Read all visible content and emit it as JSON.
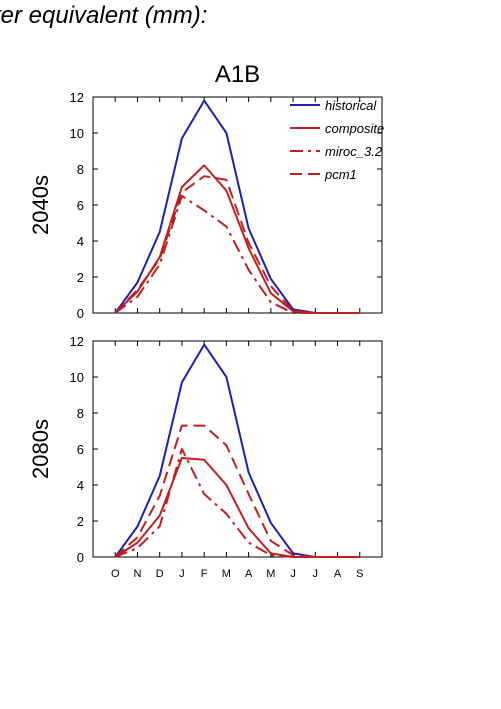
{
  "header": {
    "title": "ter equivalent (mm):"
  },
  "chart_data": {
    "type": "line",
    "scenario": "A1B",
    "months": [
      "O",
      "N",
      "D",
      "J",
      "F",
      "M",
      "A",
      "M",
      "J",
      "J",
      "A",
      "S"
    ],
    "ylim": [
      0,
      12
    ],
    "yticks": [
      0,
      2,
      4,
      6,
      8,
      10,
      12
    ],
    "grid": false,
    "legend_position": "top-right",
    "colors": {
      "historical": "#1f1fb4",
      "scenario": "#c01f1f"
    },
    "panels": [
      {
        "label": "2040s",
        "series": [
          {
            "name": "historical",
            "style": "solid",
            "color": "#1f1fb4",
            "values": [
              0,
              1.7,
              4.5,
              9.7,
              11.8,
              10.0,
              4.7,
              1.9,
              0.2,
              0,
              0,
              0
            ]
          },
          {
            "name": "composite",
            "style": "solid",
            "color": "#c01f1f",
            "values": [
              0,
              1.2,
              3.1,
              7.0,
              8.2,
              6.8,
              3.6,
              1.1,
              0.1,
              0,
              0,
              0
            ]
          },
          {
            "name": "miroc_3.2",
            "style": "dashdot",
            "color": "#c01f1f",
            "values": [
              0,
              0.9,
              2.7,
              6.5,
              5.7,
              4.8,
              2.4,
              0.6,
              0,
              0,
              0,
              0
            ]
          },
          {
            "name": "pcm1",
            "style": "dashed",
            "color": "#c01f1f",
            "values": [
              0,
              1.3,
              3.0,
              6.7,
              7.6,
              7.4,
              3.9,
              1.5,
              0.1,
              0,
              0,
              0
            ]
          }
        ]
      },
      {
        "label": "2080s",
        "series": [
          {
            "name": "historical",
            "style": "solid",
            "color": "#1f1fb4",
            "values": [
              0,
              1.7,
              4.5,
              9.7,
              11.8,
              10.0,
              4.7,
              1.9,
              0.2,
              0,
              0,
              0
            ]
          },
          {
            "name": "composite",
            "style": "solid",
            "color": "#c01f1f",
            "values": [
              0,
              0.8,
              2.3,
              5.5,
              5.4,
              4.0,
              1.6,
              0.2,
              0,
              0,
              0,
              0
            ]
          },
          {
            "name": "miroc_3.2",
            "style": "dashdot",
            "color": "#c01f1f",
            "values": [
              0,
              0.5,
              1.7,
              6.0,
              3.5,
              2.4,
              0.8,
              0.1,
              0,
              0,
              0,
              0
            ]
          },
          {
            "name": "pcm1",
            "style": "dashed",
            "color": "#c01f1f",
            "values": [
              0,
              1.1,
              3.4,
              7.3,
              7.3,
              6.2,
              3.5,
              0.9,
              0.1,
              0,
              0,
              0
            ]
          }
        ]
      }
    ]
  }
}
